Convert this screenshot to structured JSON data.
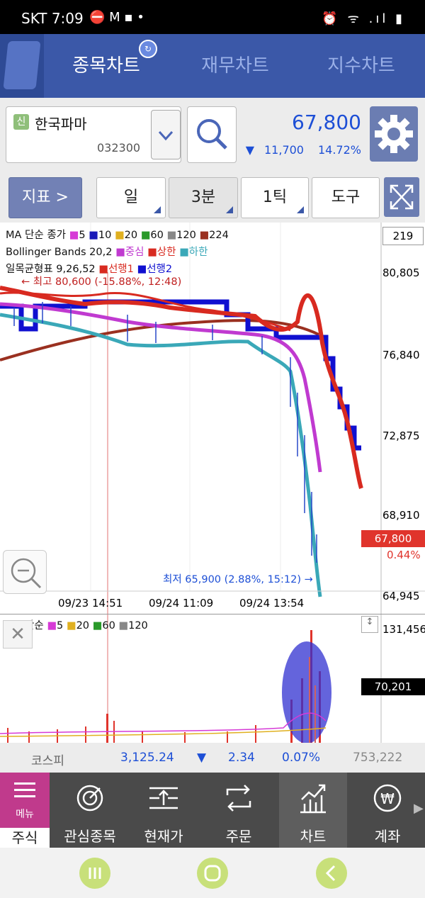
{
  "status_bar": {
    "carrier_time": "SKT 7:09",
    "icons": "⏰ ᯤ .ıl ▮"
  },
  "tabs": [
    {
      "label": "종목차트",
      "active": true
    },
    {
      "label": "재무차트",
      "active": false
    },
    {
      "label": "지수차트",
      "active": false
    }
  ],
  "stock": {
    "tag": "신",
    "name": "한국파마",
    "code": "032300",
    "price": "67,800",
    "change_arrow": "▼",
    "change_value": "11,700",
    "change_pct": "14.72%"
  },
  "toolbar": {
    "indicator_label": "지표 >",
    "period_day": "일",
    "period_min": "3분",
    "tick": "1틱",
    "tools": "도구"
  },
  "chart": {
    "top_value": "219",
    "legend_ma": {
      "prefix": "MA 단순 종가",
      "items": [
        {
          "label": "5",
          "color": "#d63ad6"
        },
        {
          "label": "10",
          "color": "#1a1ab8"
        },
        {
          "label": "20",
          "color": "#e0b020"
        },
        {
          "label": "60",
          "color": "#2a9a2a"
        },
        {
          "label": "120",
          "color": "#888888"
        },
        {
          "label": "224",
          "color": "#9a3020"
        }
      ]
    },
    "legend_bb": {
      "prefix": "Bollinger Bands 20,2",
      "items": [
        {
          "label": "중심",
          "color": "#c03ad0"
        },
        {
          "label": "상한",
          "color": "#d82a20"
        },
        {
          "label": "하한",
          "color": "#3aa8b8"
        }
      ]
    },
    "legend_ichimoku": {
      "prefix": "일목균형표 9,26,52",
      "items": [
        {
          "label": "선행1",
          "color": "#d82a20"
        },
        {
          "label": "선행2",
          "color": "#1010d0"
        }
      ]
    },
    "high_note": "← 최고 80,600 (-15.88%, 12:48)",
    "low_note": "최저 65,900 (2.88%, 15:12) →",
    "y_labels": [
      "80,805",
      "76,840",
      "72,875",
      "68,910",
      "64,945"
    ],
    "current_price_tag": "67,800",
    "current_pct": "0.44%",
    "x_labels": [
      "09/23 14:51",
      "09/24 11:09",
      "09/24 13:54"
    ]
  },
  "volume": {
    "legend_prefix": "MA 단순",
    "items": [
      {
        "label": "5",
        "color": "#d63ad6"
      },
      {
        "label": "20",
        "color": "#e0b020"
      },
      {
        "label": "60",
        "color": "#2a9a2a"
      },
      {
        "label": "120",
        "color": "#888888"
      }
    ],
    "max_label": "131,456",
    "current_tag": "70,201"
  },
  "market": {
    "name": "코스피",
    "index": "3,125.24",
    "arrow": "▼",
    "change": "2.34",
    "pct": "0.07%",
    "volume": "753,222"
  },
  "bottom_nav": [
    {
      "label": "주식",
      "sub": "메뉴"
    },
    {
      "label": "관심종목"
    },
    {
      "label": "현재가"
    },
    {
      "label": "주문"
    },
    {
      "label": "차트"
    },
    {
      "label": "계좌"
    }
  ],
  "colors": {
    "accent": "#3b58a8",
    "down_blue": "#1d4fd6",
    "up_red": "#e0342c",
    "menu_pink": "#c03a8c"
  }
}
